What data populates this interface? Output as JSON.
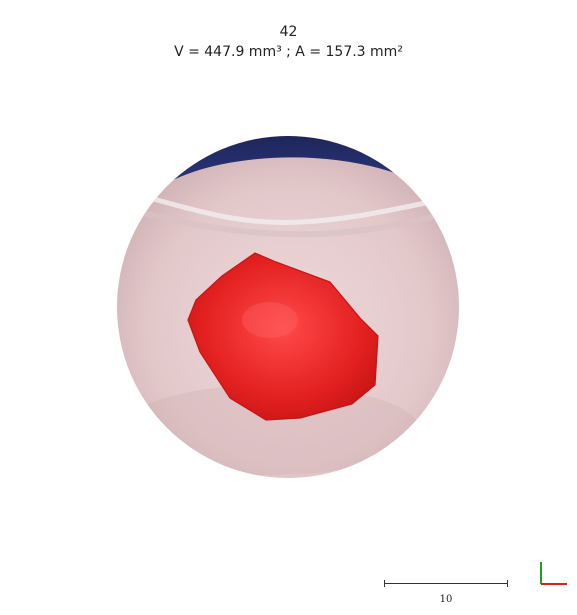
{
  "header": {
    "title": "42",
    "measurements": "V = 447.9 mm³ ; A = 157.3 mm²"
  },
  "scale_bar": {
    "label": "10"
  },
  "colors": {
    "segmentation": "#e21a1a",
    "tissue": "#e6cfd0",
    "dark_region": "#1f2a66",
    "axis_x": "#d62020",
    "axis_y": "#1fa01f"
  }
}
